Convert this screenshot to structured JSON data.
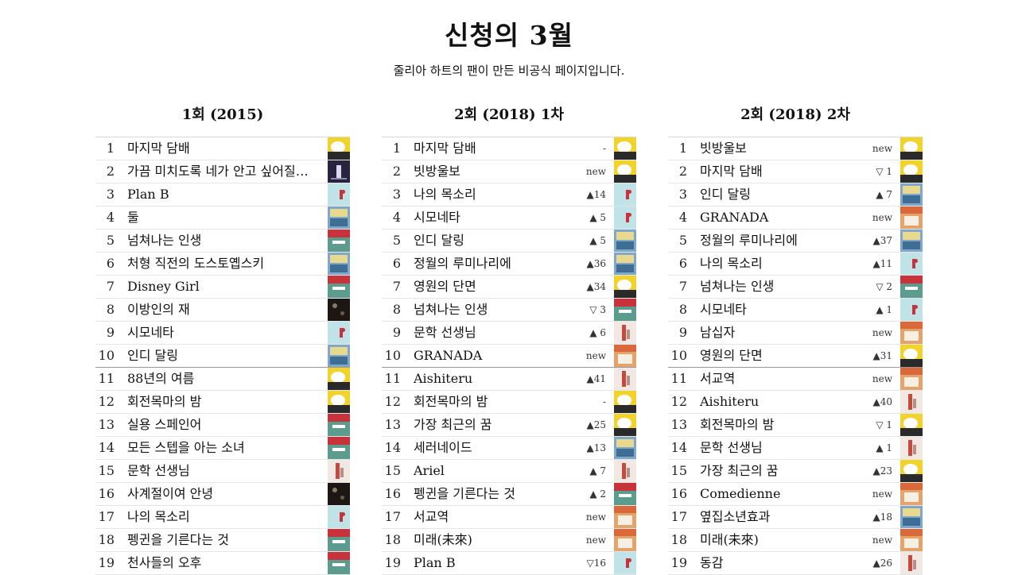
{
  "header": {
    "title": "신청의 3월",
    "subtitle": "줄리아 하트의 팬이 만든 비공식 페이지입니다."
  },
  "columns": [
    {
      "heading": "1회 (2015)",
      "rows": [
        {
          "rank": "1",
          "title": "마지막 담배",
          "change": "",
          "cover": "yellow"
        },
        {
          "rank": "2",
          "title": "가끔 미치도록 네가 안고 싶어질 ...",
          "change": "",
          "cover": "dark"
        },
        {
          "rank": "3",
          "title": "Plan B",
          "change": "",
          "cover": "cyan"
        },
        {
          "rank": "4",
          "title": "둘",
          "change": "",
          "cover": "blue"
        },
        {
          "rank": "5",
          "title": "넘쳐나는 인생",
          "change": "",
          "cover": "teal"
        },
        {
          "rank": "6",
          "title": "처형 직전의 도스토옙스키",
          "change": "",
          "cover": "blue"
        },
        {
          "rank": "7",
          "title": "Disney Girl",
          "change": "",
          "cover": "teal"
        },
        {
          "rank": "8",
          "title": "이방인의 재",
          "change": "",
          "cover": "black"
        },
        {
          "rank": "9",
          "title": "시모네타",
          "change": "",
          "cover": "cyan"
        },
        {
          "rank": "10",
          "title": "인디 달링",
          "change": "",
          "cover": "blue"
        },
        {
          "rank": "11",
          "title": "88년의 여름",
          "change": "",
          "cover": "yellow"
        },
        {
          "rank": "12",
          "title": "회전목마의 밤",
          "change": "",
          "cover": "yellow"
        },
        {
          "rank": "13",
          "title": "실용 스페인어",
          "change": "",
          "cover": "teal"
        },
        {
          "rank": "14",
          "title": "모든 스텝을 아는 소녀",
          "change": "",
          "cover": "teal"
        },
        {
          "rank": "15",
          "title": "문학 선생님",
          "change": "",
          "cover": "pale"
        },
        {
          "rank": "16",
          "title": "사계절이여 안녕",
          "change": "",
          "cover": "black"
        },
        {
          "rank": "17",
          "title": "나의 목소리",
          "change": "",
          "cover": "cyan"
        },
        {
          "rank": "18",
          "title": "펭귄을 기른다는 것",
          "change": "",
          "cover": "teal"
        },
        {
          "rank": "19",
          "title": "천사들의 오후",
          "change": "",
          "cover": "teal"
        }
      ]
    },
    {
      "heading": "2회 (2018) 1차",
      "rows": [
        {
          "rank": "1",
          "title": "마지막 담배",
          "change": "-",
          "cover": "yellow"
        },
        {
          "rank": "2",
          "title": "빗방울보",
          "change": "new",
          "cover": "yellow"
        },
        {
          "rank": "3",
          "title": "나의 목소리",
          "change": "▲14",
          "cover": "cyan"
        },
        {
          "rank": "4",
          "title": "시모네타",
          "change": "▲ 5",
          "cover": "cyan"
        },
        {
          "rank": "5",
          "title": "인디 달링",
          "change": "▲ 5",
          "cover": "blue"
        },
        {
          "rank": "6",
          "title": "정월의 루미나리에",
          "change": "▲36",
          "cover": "blue"
        },
        {
          "rank": "7",
          "title": "영원의 단면",
          "change": "▲34",
          "cover": "yellow"
        },
        {
          "rank": "8",
          "title": "넘쳐나는 인생",
          "change": "▽ 3",
          "cover": "teal"
        },
        {
          "rank": "9",
          "title": "문학 선생님",
          "change": "▲ 6",
          "cover": "pale"
        },
        {
          "rank": "10",
          "title": "GRANADA",
          "change": "new",
          "cover": "orange"
        },
        {
          "rank": "11",
          "title": "Aishiteru",
          "change": "▲41",
          "cover": "pale"
        },
        {
          "rank": "12",
          "title": "회전목마의 밤",
          "change": "-",
          "cover": "yellow"
        },
        {
          "rank": "13",
          "title": "가장 최근의 꿈",
          "change": "▲25",
          "cover": "yellow"
        },
        {
          "rank": "14",
          "title": "세러네이드",
          "change": "▲13",
          "cover": "blue"
        },
        {
          "rank": "15",
          "title": "Ariel",
          "change": "▲ 7",
          "cover": "pale"
        },
        {
          "rank": "16",
          "title": "펭귄을 기른다는 것",
          "change": "▲ 2",
          "cover": "teal"
        },
        {
          "rank": "17",
          "title": "서교역",
          "change": "new",
          "cover": "orange"
        },
        {
          "rank": "18",
          "title": "미래(未來)",
          "change": "new",
          "cover": "orange"
        },
        {
          "rank": "19",
          "title": "Plan B",
          "change": "▽16",
          "cover": "cyan"
        }
      ]
    },
    {
      "heading": "2회 (2018) 2차",
      "rows": [
        {
          "rank": "1",
          "title": "빗방울보",
          "change": "new",
          "cover": "yellow"
        },
        {
          "rank": "2",
          "title": "마지막 담배",
          "change": "▽ 1",
          "cover": "yellow"
        },
        {
          "rank": "3",
          "title": "인디 달링",
          "change": "▲ 7",
          "cover": "blue"
        },
        {
          "rank": "4",
          "title": "GRANADA",
          "change": "new",
          "cover": "orange"
        },
        {
          "rank": "5",
          "title": "정월의 루미나리에",
          "change": "▲37",
          "cover": "blue"
        },
        {
          "rank": "6",
          "title": "나의 목소리",
          "change": "▲11",
          "cover": "cyan"
        },
        {
          "rank": "7",
          "title": "넘쳐나는 인생",
          "change": "▽ 2",
          "cover": "teal"
        },
        {
          "rank": "8",
          "title": "시모네타",
          "change": "▲ 1",
          "cover": "cyan"
        },
        {
          "rank": "9",
          "title": "남십자",
          "change": "new",
          "cover": "orange"
        },
        {
          "rank": "10",
          "title": "영원의 단면",
          "change": "▲31",
          "cover": "yellow"
        },
        {
          "rank": "11",
          "title": "서교역",
          "change": "new",
          "cover": "orange"
        },
        {
          "rank": "12",
          "title": "Aishiteru",
          "change": "▲40",
          "cover": "pale"
        },
        {
          "rank": "13",
          "title": "회전목마의 밤",
          "change": "▽ 1",
          "cover": "yellow"
        },
        {
          "rank": "14",
          "title": "문학 선생님",
          "change": "▲ 1",
          "cover": "pale"
        },
        {
          "rank": "15",
          "title": "가장 최근의 꿈",
          "change": "▲23",
          "cover": "yellow"
        },
        {
          "rank": "16",
          "title": "Comedienne",
          "change": "new",
          "cover": "orange"
        },
        {
          "rank": "17",
          "title": "옆집소년효과",
          "change": "▲18",
          "cover": "blue"
        },
        {
          "rank": "18",
          "title": "미래(未來)",
          "change": "new",
          "cover": "orange"
        },
        {
          "rank": "19",
          "title": "동감",
          "change": "▲26",
          "cover": "pale"
        }
      ]
    }
  ],
  "cover_colors": {
    "yellow": "#f2d32c",
    "dark": "#2a2340",
    "cyan": "#bfe3e6",
    "blue": "#7fa7c9",
    "teal": "#5b9c8e",
    "black": "#1c1712",
    "pale": "#f1e7e3",
    "orange": "#e4a36b",
    "accent_red": "#c8323a"
  }
}
